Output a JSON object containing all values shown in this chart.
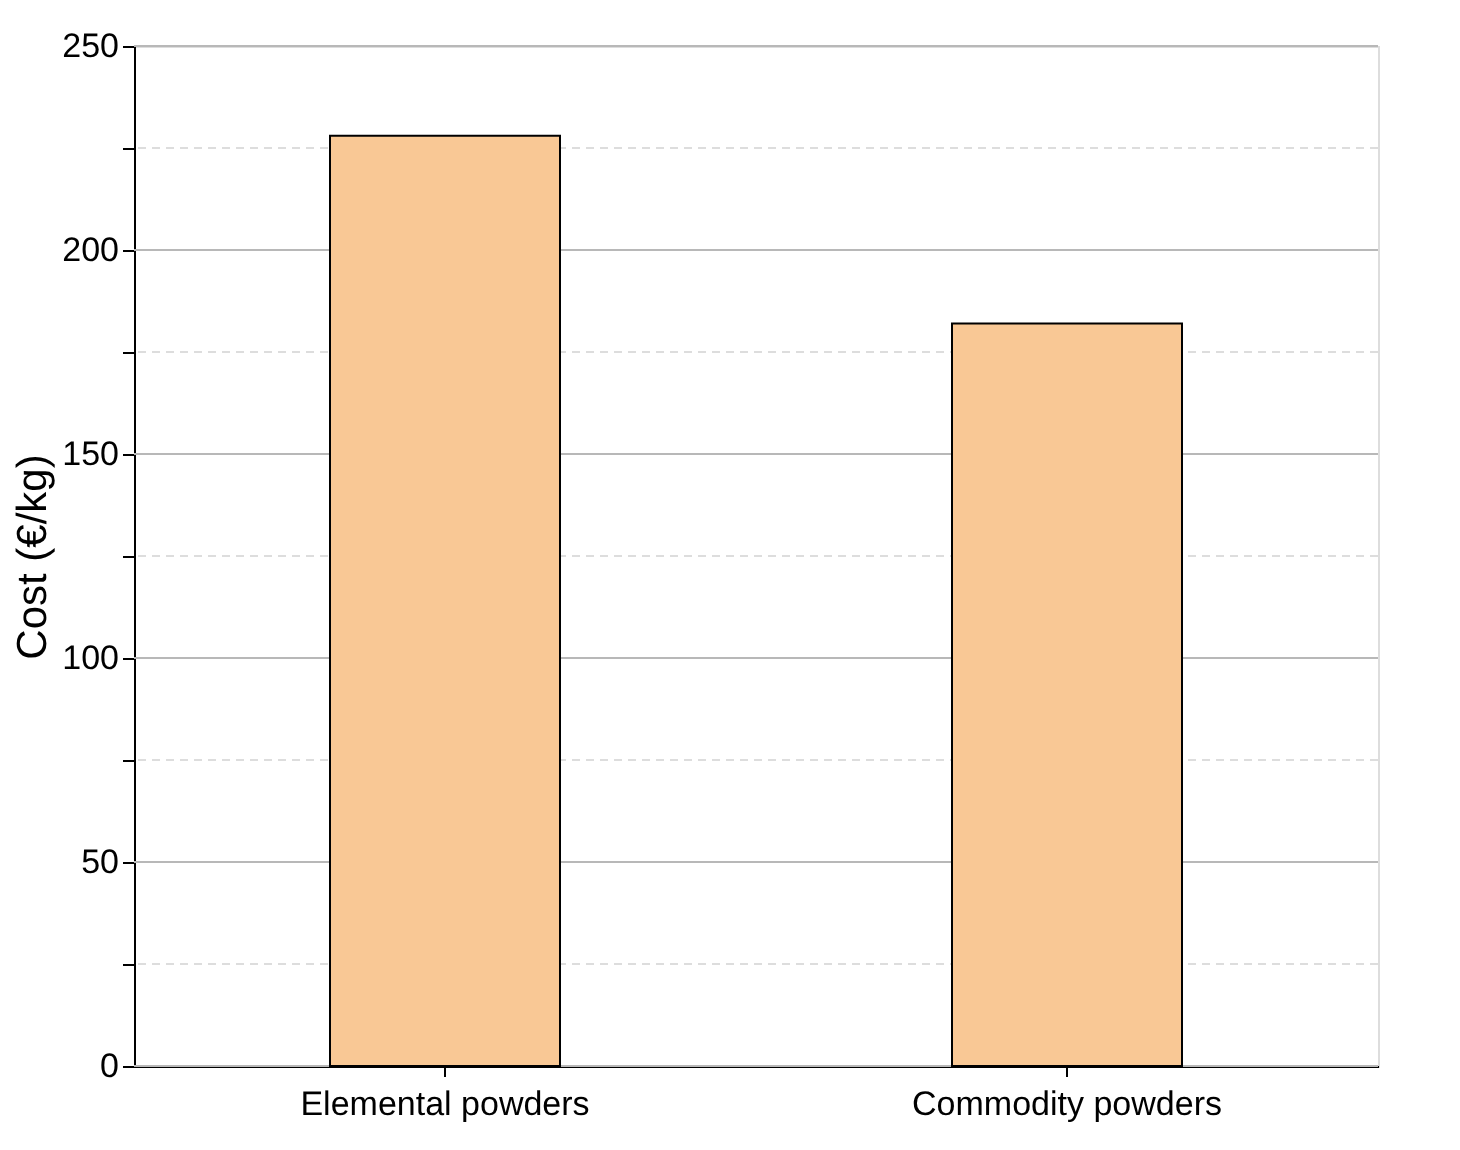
{
  "chart_data": {
    "type": "bar",
    "ylabel": "Cost (€/kg)",
    "categories": [
      "Elemental powders",
      "Commodity powders"
    ],
    "values": [
      228,
      182
    ],
    "color": "#f9c895",
    "ylim": [
      0,
      250
    ],
    "yticks": [
      0,
      {
        "value": 25,
        "label": null
      },
      50,
      {
        "value": 75,
        "label": null
      },
      100,
      {
        "value": 125,
        "label": null
      },
      150,
      {
        "value": 175,
        "label": null
      },
      200,
      {
        "value": 225,
        "label": null
      },
      250
    ],
    "grid": "y"
  }
}
